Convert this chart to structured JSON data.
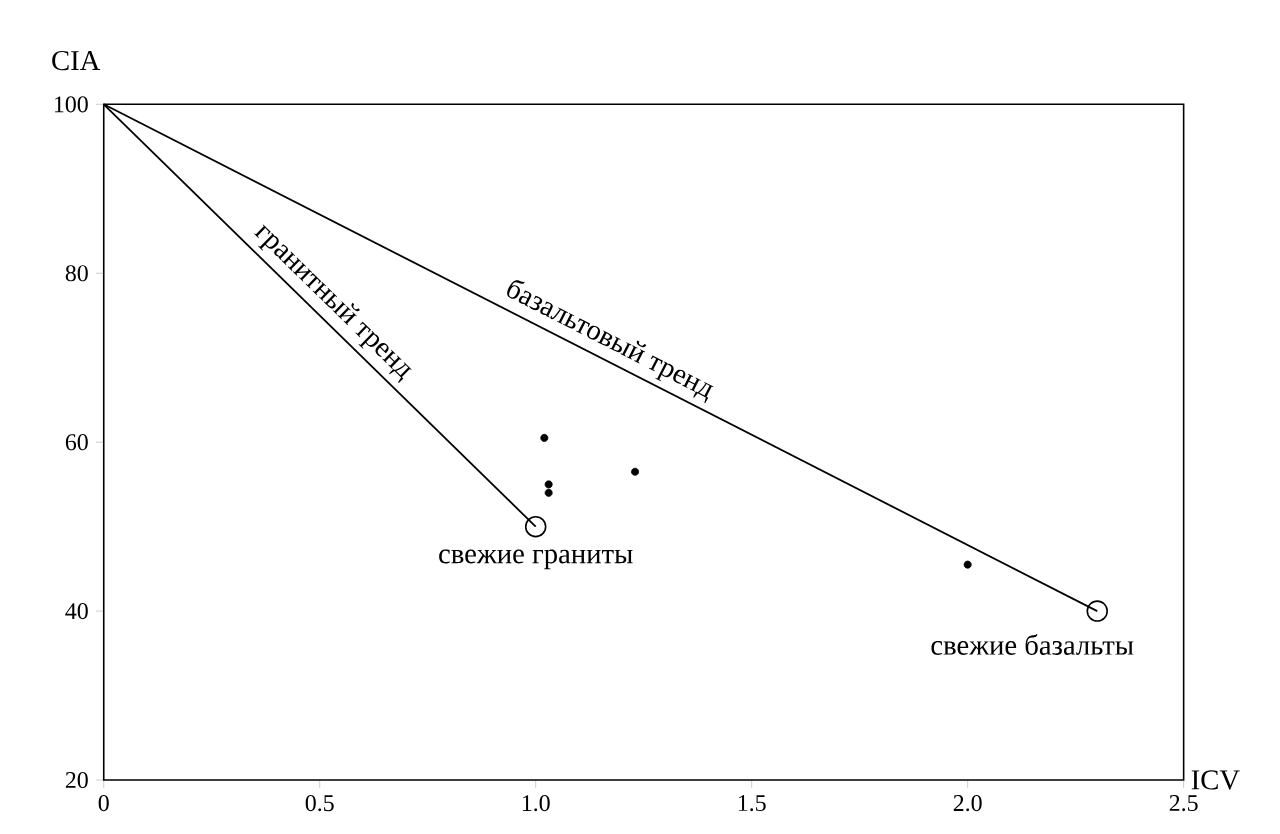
{
  "chart_data": {
    "type": "scatter",
    "xlabel": "ICV",
    "ylabel": "CIA",
    "xlim": [
      0,
      2.5
    ],
    "ylim": [
      20,
      100
    ],
    "xticks": [
      0,
      0.5,
      {
        "value": 1,
        "label": "1.0"
      },
      1.5,
      {
        "value": 2,
        "label": "2.0"
      },
      2.5
    ],
    "yticks": [
      20,
      40,
      60,
      80,
      100
    ],
    "grid": false,
    "series": [
      {
        "type": "line",
        "color": "#000000",
        "x": [
          0,
          1
        ],
        "values": [
          100,
          50
        ]
      },
      {
        "type": "line",
        "color": "#000000",
        "x": [
          0,
          2.3
        ],
        "values": [
          100,
          40
        ]
      },
      {
        "color": "#000000",
        "x": [
          1.02,
          1.03,
          1.03,
          1.23,
          2.0
        ],
        "values": [
          60.5,
          55,
          54,
          56.5,
          45.5
        ]
      },
      {
        "color": "#000000",
        "marker": "circle",
        "x": [
          1,
          2.3
        ],
        "values": [
          50,
          40
        ]
      }
    ],
    "annotations": [
      {
        "text": "гранитный тренд",
        "x": 0.5,
        "y": 75
      },
      {
        "text": "базальтовый тренд",
        "x": 1.15,
        "y": 70
      },
      {
        "text": "свежие граниты",
        "x": 1,
        "y": 50
      },
      {
        "text": "свежие базальты",
        "x": 2.3,
        "y": 40
      }
    ]
  }
}
